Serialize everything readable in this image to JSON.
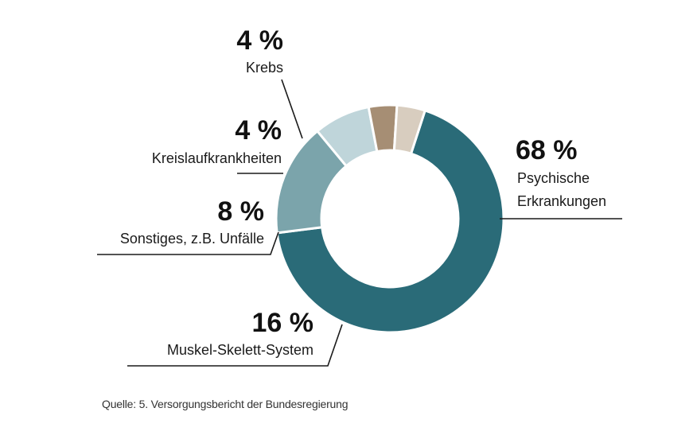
{
  "chart_data": {
    "type": "pie",
    "donut": true,
    "categories": [
      "Psychische Erkrankungen",
      "Muskel-Skelett-System",
      "Sonstiges, z.B. Unfälle",
      "Kreislaufkrankheiten",
      "Krebs"
    ],
    "values": [
      68,
      16,
      8,
      4,
      4
    ],
    "unit": "%",
    "slices": [
      {
        "name": "Psychische Erkrankungen",
        "value": 68,
        "pct_label": "68 %",
        "label_lines": [
          "Psychische",
          "Erkrankungen"
        ],
        "color": "#2a6b78"
      },
      {
        "name": "Muskel-Skelett-System",
        "value": 16,
        "pct_label": "16 %",
        "label_lines": [
          "Muskel-Skelett-System"
        ],
        "color": "#7ba4ab"
      },
      {
        "name": "Sonstiges, z.B. Unfälle",
        "value": 8,
        "pct_label": "8 %",
        "label_lines": [
          "Sonstiges, z.B. Unfälle"
        ],
        "color": "#bfd5da"
      },
      {
        "name": "Kreislaufkrankheiten",
        "value": 4,
        "pct_label": "4 %",
        "label_lines": [
          "Kreislaufkrankheiten"
        ],
        "color": "#a68e74"
      },
      {
        "name": "Krebs",
        "value": 4,
        "pct_label": "4 %",
        "label_lines": [
          "Krebs"
        ],
        "color": "#d8cdbf"
      }
    ],
    "title": "",
    "source": "Quelle: 5. Versorgungsbericht der Bundesregierung"
  }
}
